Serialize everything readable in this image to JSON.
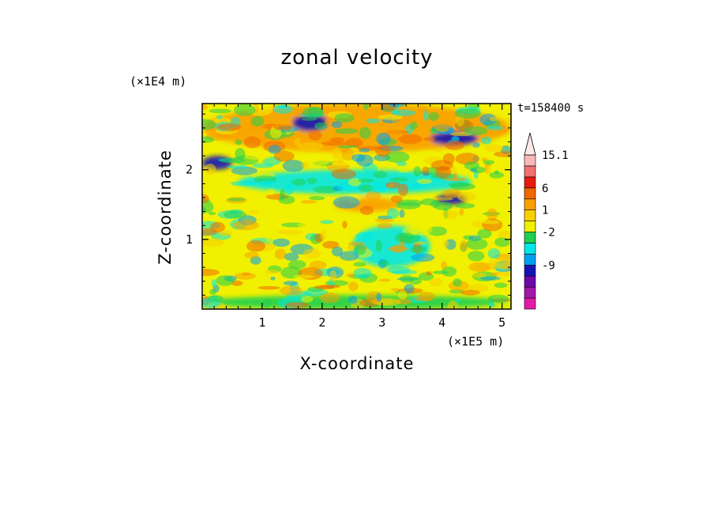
{
  "chart_data": {
    "type": "heatmap",
    "title": "zonal velocity",
    "xlabel": "X-coordinate",
    "ylabel": "Z-coordinate",
    "x_exponent_label": "(×1E5 m)",
    "y_exponent_label": "(×1E4 m)",
    "time_label": "t=158400 s",
    "xlim": [
      0,
      5.15
    ],
    "ylim": [
      0,
      2.95
    ],
    "x_ticks": [
      "1",
      "2",
      "3",
      "4",
      "5"
    ],
    "y_ticks": [
      "1",
      "2"
    ],
    "colorbar": {
      "labels": [
        "15.1",
        "6",
        "1",
        "-2",
        "-9"
      ],
      "levels": [
        {
          "color": "#e41aa8"
        },
        {
          "color": "#a018a8"
        },
        {
          "color": "#6c0aa8"
        },
        {
          "color": "#1414b4"
        },
        {
          "color": "#00a0f0"
        },
        {
          "color": "#00e8e8"
        },
        {
          "color": "#20d050"
        },
        {
          "color": "#f0f000"
        },
        {
          "color": "#f8d000"
        },
        {
          "color": "#f8a000"
        },
        {
          "color": "#f06800"
        },
        {
          "color": "#e81a10"
        },
        {
          "color": "#f07070"
        },
        {
          "color": "#f8b8b8"
        }
      ]
    },
    "field": {
      "background_color": "#f0f000",
      "regions": [
        {
          "name": "upper-positive-band",
          "color": "#f8a000",
          "x": [
            0,
            5.15
          ],
          "y": [
            2.25,
            2.95
          ]
        },
        {
          "name": "upper-negative-core-1",
          "color": "#1414b4",
          "x": [
            1.5,
            2.1
          ],
          "y": [
            2.55,
            2.8
          ]
        },
        {
          "name": "upper-negative-core-2",
          "color": "#1414b4",
          "x": [
            3.8,
            4.6
          ],
          "y": [
            2.35,
            2.55
          ]
        },
        {
          "name": "left-negative-core",
          "color": "#1414b4",
          "x": [
            0,
            0.5
          ],
          "y": [
            2.0,
            2.2
          ]
        },
        {
          "name": "mid-negative-band",
          "color": "#00e8e8",
          "x": [
            0.6,
            4.5
          ],
          "y": [
            1.65,
            2.0
          ]
        },
        {
          "name": "mid-negative-core",
          "color": "#1414b4",
          "x": [
            3.9,
            4.4
          ],
          "y": [
            1.5,
            1.65
          ]
        },
        {
          "name": "lower-positive-band",
          "color": "#f8a000",
          "x": [
            2.2,
            3.3
          ],
          "y": [
            1.4,
            1.6
          ]
        },
        {
          "name": "lower-negative-lobe",
          "color": "#00e8e8",
          "x": [
            2.5,
            3.8
          ],
          "y": [
            0.6,
            1.2
          ]
        },
        {
          "name": "near-surface-green",
          "color": "#20d050",
          "x": [
            0,
            5.15
          ],
          "y": [
            0,
            0.2
          ]
        }
      ]
    }
  }
}
